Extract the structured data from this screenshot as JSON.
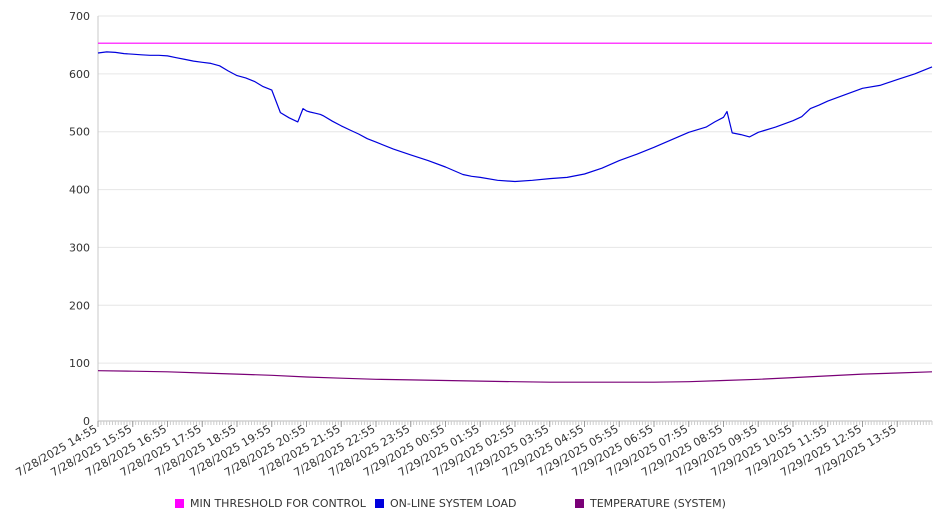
{
  "chart_data": {
    "type": "line",
    "title": "",
    "xlabel": "",
    "ylabel": "",
    "ylim": [
      0,
      700
    ],
    "y_ticks": [
      "0",
      "100",
      "200",
      "300",
      "400",
      "500",
      "600",
      "700"
    ],
    "x_tick_labels": [
      "7/28/2025 14:55",
      "7/28/2025 15:55",
      "7/28/2025 16:55",
      "7/28/2025 17:55",
      "7/28/2025 18:55",
      "7/28/2025 19:55",
      "7/28/2025 20:55",
      "7/28/2025 21:55",
      "7/28/2025 22:55",
      "7/28/2025 23:55",
      "7/29/2025 00:55",
      "7/29/2025 01:55",
      "7/29/2025 02:55",
      "7/29/2025 03:55",
      "7/29/2025 04:55",
      "7/29/2025 05:55",
      "7/29/2025 06:55",
      "7/29/2025 07:55",
      "7/29/2025 08:55",
      "7/29/2025 09:55",
      "7/29/2025 10:55",
      "7/29/2025 11:55",
      "7/29/2025 12:55",
      "7/29/2025 13:55"
    ],
    "x_range_hours": [
      0,
      24
    ],
    "grid": "horizontal",
    "legend_position": "bottom",
    "series": [
      {
        "name": "MIN THRESHOLD FOR CONTROL",
        "color": "#ff00ff",
        "x": [
          0,
          24
        ],
        "y": [
          653,
          653
        ]
      },
      {
        "name": "ON-LINE SYSTEM LOAD",
        "color": "#0000dd",
        "x": [
          0,
          0.25,
          0.5,
          0.75,
          1,
          1.25,
          1.5,
          1.75,
          2,
          2.25,
          2.5,
          2.75,
          3,
          3.25,
          3.5,
          3.75,
          4,
          4.25,
          4.5,
          4.75,
          5,
          5.25,
          5.5,
          5.75,
          5.9,
          6,
          6.1,
          6.25,
          6.4,
          6.5,
          6.75,
          7,
          7.25,
          7.5,
          7.75,
          8,
          8.5,
          9,
          9.5,
          10,
          10.5,
          10.75,
          11,
          11.5,
          12,
          12.5,
          13,
          13.5,
          14,
          14.5,
          15,
          15.5,
          16,
          16.5,
          17,
          17.5,
          17.75,
          18,
          18.1,
          18.25,
          18.5,
          18.75,
          19,
          19.5,
          20,
          20.25,
          20.5,
          20.75,
          21,
          21.5,
          22,
          22.5,
          23,
          23.5,
          24
        ],
        "y": [
          636,
          638,
          637,
          635,
          634,
          633,
          632,
          632,
          631,
          628,
          625,
          622,
          620,
          618,
          614,
          605,
          597,
          593,
          587,
          578,
          572,
          533,
          524,
          517,
          540,
          536,
          534,
          532,
          530,
          527,
          518,
          510,
          503,
          496,
          488,
          482,
          470,
          460,
          450,
          439,
          426,
          423,
          421,
          416,
          414,
          416,
          419,
          421,
          427,
          437,
          450,
          461,
          473,
          486,
          499,
          508,
          517,
          525,
          535,
          498,
          495,
          491,
          499,
          508,
          519,
          526,
          540,
          546,
          553,
          564,
          575,
          580,
          590,
          600,
          612
        ]
      },
      {
        "name": "TEMPERATURE (SYSTEM)",
        "color": "#7a0077",
        "x": [
          0,
          1,
          2,
          3,
          4,
          5,
          6,
          7,
          8,
          9,
          10,
          11,
          12,
          13,
          14,
          15,
          16,
          17,
          18,
          19,
          20,
          21,
          22,
          23,
          24
        ],
        "y": [
          87,
          86,
          85,
          83,
          81,
          79,
          76,
          74,
          72,
          71,
          70,
          69,
          68,
          67,
          67,
          67,
          67,
          68,
          70,
          72,
          75,
          78,
          81,
          83,
          85
        ]
      }
    ]
  }
}
